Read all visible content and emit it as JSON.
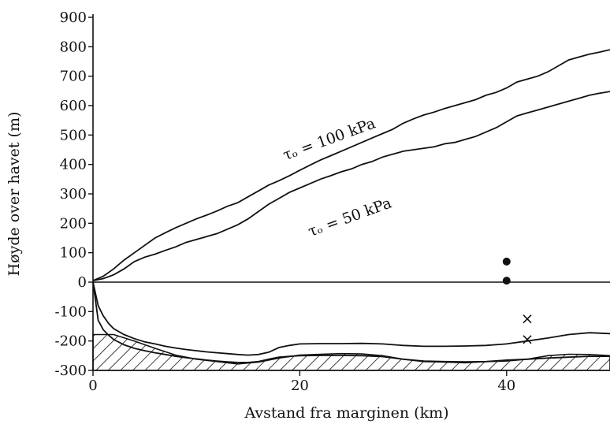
{
  "chart_data": {
    "type": "line",
    "xlabel": "Avstand fra marginen (km)",
    "ylabel": "Høyde over havet (m)",
    "xlim": [
      0,
      50
    ],
    "ylim": [
      -300,
      900
    ],
    "xticks": [
      0,
      20,
      40
    ],
    "yticks": [
      -300,
      -200,
      -100,
      0,
      100,
      200,
      300,
      400,
      500,
      600,
      700,
      800,
      900
    ],
    "grid": false,
    "annotations": [
      {
        "text": "τₒ = 100 kPa",
        "x": 23,
        "y": 470
      },
      {
        "text": "τₒ = 50 kPa",
        "x": 25,
        "y": 205
      }
    ],
    "series": [
      {
        "role": "surface-100kPa",
        "x": [
          0,
          1,
          2,
          3,
          4,
          5,
          6,
          7,
          8,
          9,
          10,
          11,
          12,
          13,
          14,
          15,
          16,
          17,
          18,
          19,
          20,
          21,
          22,
          23,
          24,
          25,
          26,
          27,
          28,
          29,
          30,
          31,
          32,
          33,
          34,
          35,
          36,
          37,
          38,
          39,
          40,
          41,
          42,
          43,
          44,
          45,
          46,
          47,
          48,
          49,
          50
        ],
        "y": [
          5,
          20,
          45,
          75,
          100,
          125,
          150,
          168,
          185,
          200,
          215,
          228,
          242,
          258,
          270,
          290,
          310,
          330,
          345,
          362,
          380,
          398,
          415,
          430,
          445,
          460,
          475,
          490,
          505,
          520,
          540,
          555,
          568,
          578,
          590,
          600,
          610,
          620,
          635,
          645,
          660,
          680,
          690,
          700,
          715,
          735,
          755,
          765,
          775,
          782,
          790
        ]
      },
      {
        "role": "surface-50kPa",
        "x": [
          0,
          1,
          2,
          3,
          4,
          5,
          6,
          7,
          8,
          9,
          10,
          11,
          12,
          13,
          14,
          15,
          16,
          17,
          18,
          19,
          20,
          21,
          22,
          23,
          24,
          25,
          26,
          27,
          28,
          29,
          30,
          31,
          32,
          33,
          34,
          35,
          36,
          37,
          38,
          39,
          40,
          41,
          42,
          43,
          44,
          45,
          46,
          47,
          48,
          49,
          50
        ],
        "y": [
          5,
          12,
          25,
          45,
          70,
          85,
          95,
          108,
          120,
          135,
          145,
          155,
          165,
          180,
          195,
          215,
          240,
          265,
          285,
          305,
          320,
          335,
          350,
          362,
          375,
          385,
          400,
          410,
          425,
          435,
          445,
          450,
          455,
          460,
          470,
          475,
          485,
          495,
          510,
          525,
          545,
          565,
          575,
          585,
          595,
          605,
          615,
          625,
          635,
          642,
          648
        ]
      },
      {
        "role": "bed-upper",
        "x": [
          0,
          0.5,
          1,
          1.5,
          2,
          3,
          4,
          5,
          6,
          7,
          8,
          9,
          10,
          11,
          12,
          13,
          14,
          15,
          16,
          17,
          18,
          19,
          20,
          22,
          24,
          26,
          28,
          30,
          32,
          34,
          36,
          38,
          40,
          42,
          44,
          46,
          48,
          50
        ],
        "y": [
          0,
          -80,
          -115,
          -140,
          -158,
          -178,
          -192,
          -203,
          -210,
          -218,
          -224,
          -229,
          -233,
          -237,
          -240,
          -243,
          -246,
          -248,
          -246,
          -238,
          -222,
          -215,
          -210,
          -209,
          -209,
          -208,
          -210,
          -215,
          -218,
          -218,
          -217,
          -215,
          -210,
          -200,
          -190,
          -178,
          -172,
          -175
        ]
      },
      {
        "role": "bed-lower",
        "x": [
          0,
          0.5,
          1,
          1.5,
          2,
          3,
          4,
          5,
          6,
          7,
          8,
          9,
          10,
          11,
          12,
          13,
          14,
          15,
          16,
          17,
          18,
          19,
          20,
          22,
          24,
          26,
          28,
          30,
          32,
          34,
          36,
          38,
          40,
          42,
          44,
          46,
          48,
          50
        ],
        "y": [
          0,
          -130,
          -162,
          -180,
          -195,
          -213,
          -225,
          -233,
          -240,
          -246,
          -252,
          -257,
          -261,
          -265,
          -268,
          -271,
          -273,
          -273,
          -270,
          -262,
          -255,
          -252,
          -250,
          -249,
          -249,
          -250,
          -253,
          -262,
          -268,
          -270,
          -271,
          -270,
          -265,
          -262,
          -258,
          -255,
          -252,
          -252
        ]
      },
      {
        "role": "bedrock-hatched",
        "x": [
          0,
          1,
          2,
          4,
          6,
          8,
          10,
          12,
          14,
          16,
          18,
          20,
          22,
          24,
          26,
          28,
          30,
          32,
          34,
          36,
          38,
          40,
          42,
          44,
          46,
          48,
          50
        ],
        "y": [
          -178,
          -178,
          -178,
          -200,
          -225,
          -248,
          -262,
          -270,
          -278,
          -272,
          -258,
          -248,
          -245,
          -243,
          -244,
          -250,
          -262,
          -270,
          -272,
          -274,
          -270,
          -268,
          -262,
          -250,
          -245,
          -246,
          -250
        ]
      }
    ],
    "markers": [
      {
        "shape": "circle",
        "x": 40,
        "y": 70
      },
      {
        "shape": "circle",
        "x": 40,
        "y": 5
      },
      {
        "shape": "cross",
        "x": 42,
        "y": -125
      },
      {
        "shape": "cross",
        "x": 42,
        "y": -195
      }
    ]
  }
}
